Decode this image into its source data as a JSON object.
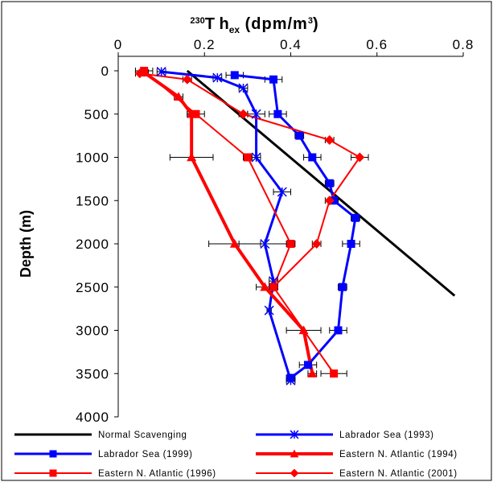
{
  "chart_data": {
    "type": "line",
    "title": "",
    "xlabel": "230Th ex (dpm/m3)",
    "xlabel_parts": {
      "sup1": "230",
      "main": "T h",
      "sub": "ex",
      "units": " (dpm/m",
      "sup2": "3",
      "close": ")"
    },
    "ylabel": "Depth (m)",
    "xlim": [
      0,
      0.8
    ],
    "ylim": [
      0,
      4000
    ],
    "y_reversed": true,
    "x_axis_position": "top",
    "xticks": [
      0,
      0.2,
      0.4,
      0.6,
      0.8
    ],
    "xtick_labels": [
      "0",
      "0.2",
      "0.4",
      "0.6",
      "0.8"
    ],
    "yticks": [
      0,
      500,
      1000,
      1500,
      2000,
      2500,
      3000,
      3500,
      4000
    ],
    "ytick_labels": [
      "0",
      "500",
      "1000",
      "1500",
      "2000",
      "2500",
      "3000",
      "3500",
      "4000"
    ],
    "grid": false,
    "legend_position": "bottom",
    "series": [
      {
        "name": "Normal Scavenging",
        "color": "#000000",
        "marker": "none",
        "stroke": 3,
        "points": [
          [
            0.16,
            0
          ],
          [
            0.78,
            2600
          ]
        ]
      },
      {
        "name": "Labrador Sea (1993)",
        "color": "#0000ff",
        "marker": "star",
        "stroke": 3,
        "points": [
          [
            0.1,
            10
          ],
          [
            0.23,
            80
          ],
          [
            0.29,
            200
          ],
          [
            0.32,
            500
          ],
          [
            0.32,
            1000
          ],
          [
            0.38,
            1400
          ],
          [
            0.34,
            2000
          ],
          [
            0.36,
            2430
          ],
          [
            0.35,
            2770
          ],
          [
            0.4,
            3580
          ]
        ],
        "xerr": [
          0.01,
          0.01,
          0.01,
          0.02,
          0.01,
          0.02,
          0.06,
          0.01,
          0.005,
          0.01
        ]
      },
      {
        "name": "Labrador Sea (1999)",
        "color": "#0000ff",
        "marker": "square",
        "stroke": 3,
        "points": [
          [
            0.27,
            50
          ],
          [
            0.36,
            100
          ],
          [
            0.37,
            500
          ],
          [
            0.42,
            750
          ],
          [
            0.45,
            1000
          ],
          [
            0.49,
            1300
          ],
          [
            0.5,
            1500
          ],
          [
            0.55,
            1700
          ],
          [
            0.54,
            2000
          ],
          [
            0.52,
            2500
          ],
          [
            0.51,
            3000
          ],
          [
            0.44,
            3400
          ],
          [
            0.4,
            3550
          ]
        ],
        "xerr": [
          0.02,
          0.02,
          0.02,
          0.01,
          0.02,
          0.01,
          0.01,
          0.01,
          0.02,
          0.01,
          0.02,
          0.02,
          0.01
        ]
      },
      {
        "name": "Eastern N. Atlantic (1994)",
        "color": "#ff0000",
        "marker": "triangle",
        "stroke": 4,
        "points": [
          [
            0.06,
            20
          ],
          [
            0.14,
            300
          ],
          [
            0.17,
            500
          ],
          [
            0.17,
            1000
          ],
          [
            0.27,
            2000
          ],
          [
            0.34,
            2500
          ],
          [
            0.43,
            3000
          ],
          [
            0.45,
            3500
          ]
        ],
        "xerr": [
          0.01,
          0.01,
          0.01,
          0.05,
          0.06,
          0.02,
          0.04,
          0.01
        ]
      },
      {
        "name": "Eastern N. Atlantic (1996)",
        "color": "#ff0000",
        "marker": "square",
        "stroke": 2,
        "points": [
          [
            0.06,
            0
          ],
          [
            0.18,
            500
          ],
          [
            0.3,
            1000
          ],
          [
            0.4,
            2000
          ],
          [
            0.36,
            2500
          ],
          [
            0.5,
            3500
          ]
        ],
        "xerr": [
          0.02,
          0.02,
          0.01,
          0.01,
          0.01,
          0.03
        ]
      },
      {
        "name": "Eastern N. Atlantic (2001)",
        "color": "#ff0000",
        "marker": "diamond",
        "stroke": 2,
        "points": [
          [
            0.05,
            30
          ],
          [
            0.16,
            100
          ],
          [
            0.29,
            500
          ],
          [
            0.49,
            800
          ],
          [
            0.56,
            1000
          ],
          [
            0.49,
            1500
          ],
          [
            0.46,
            2000
          ],
          [
            0.36,
            2500
          ]
        ],
        "xerr": [
          0.01,
          0.01,
          0.01,
          0.01,
          0.02,
          0.01,
          0.01,
          0.01
        ]
      }
    ]
  }
}
